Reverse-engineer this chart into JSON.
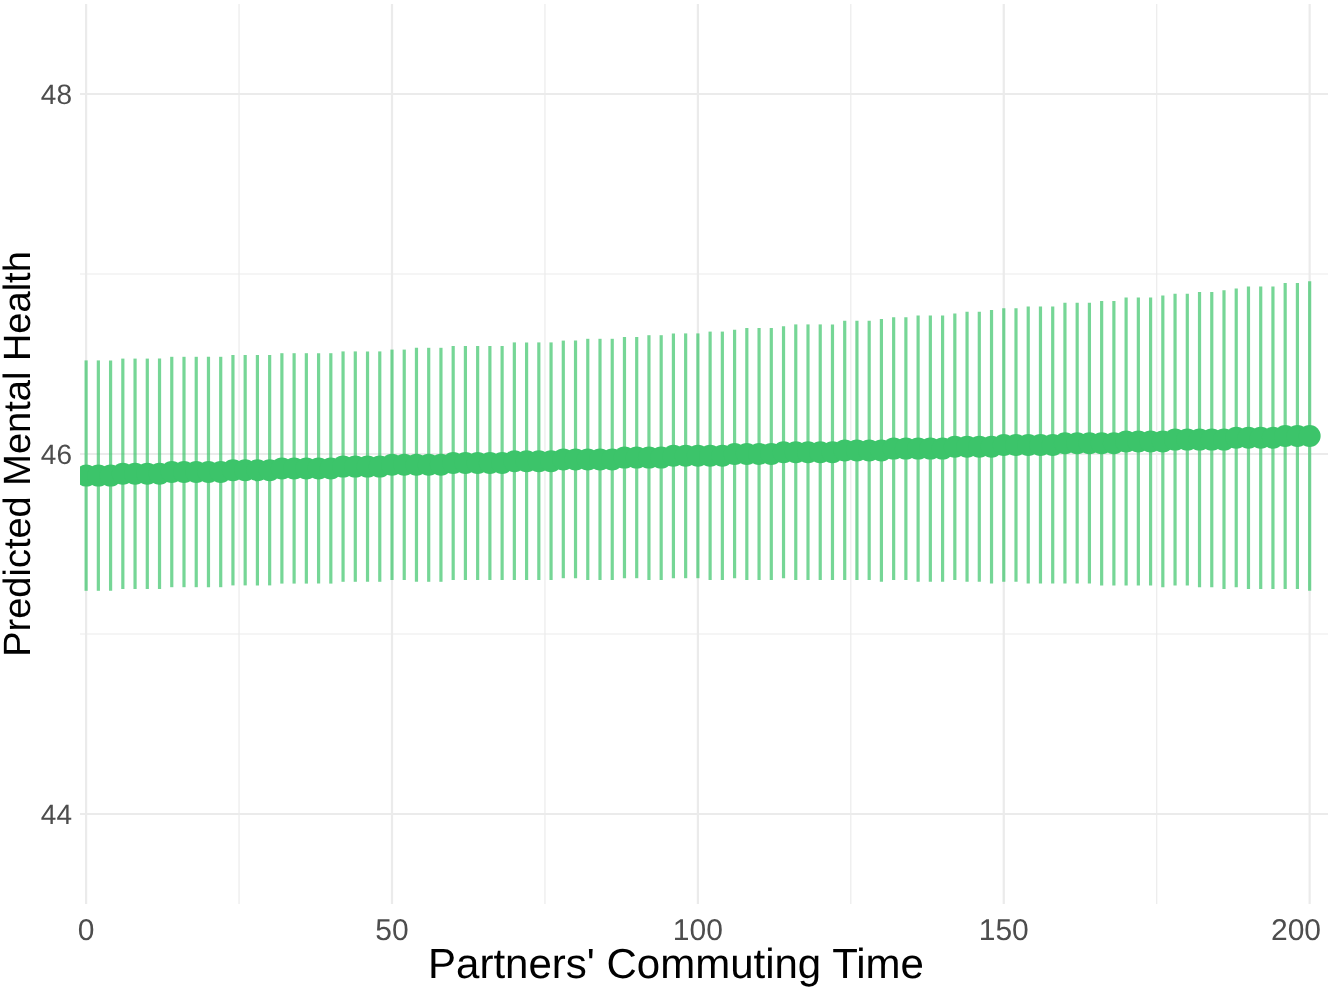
{
  "chart_data": {
    "type": "scatter",
    "xlabel": "Partners' Commuting Time",
    "ylabel": "Predicted Mental Health",
    "xlim": [
      -1,
      203
    ],
    "ylim": [
      43.5,
      48.5
    ],
    "xticks": [
      0,
      {
        "value": 25,
        "label": null
      },
      50,
      {
        "value": 75,
        "label": null
      },
      100,
      {
        "value": 125,
        "label": null
      },
      150,
      {
        "value": 175,
        "label": null
      },
      200
    ],
    "yticks": [
      44,
      {
        "value": 45,
        "label": null
      },
      46,
      {
        "value": 47,
        "label": null
      },
      48
    ],
    "grid": true,
    "marker": "circle",
    "x": [
      0,
      2,
      4,
      6,
      8,
      10,
      12,
      14,
      16,
      18,
      20,
      22,
      24,
      26,
      28,
      30,
      32,
      34,
      36,
      38,
      40,
      42,
      44,
      46,
      48,
      50,
      52,
      54,
      56,
      58,
      60,
      62,
      64,
      66,
      68,
      70,
      72,
      74,
      76,
      78,
      80,
      82,
      84,
      86,
      88,
      90,
      92,
      94,
      96,
      98,
      100,
      102,
      104,
      106,
      108,
      110,
      112,
      114,
      116,
      118,
      120,
      122,
      124,
      126,
      128,
      130,
      132,
      134,
      136,
      138,
      140,
      142,
      144,
      146,
      148,
      150,
      152,
      154,
      156,
      158,
      160,
      162,
      164,
      166,
      168,
      170,
      172,
      174,
      176,
      178,
      180,
      182,
      184,
      186,
      188,
      190,
      192,
      194,
      196,
      198,
      200
    ],
    "series": [
      {
        "color": "#3cc46a",
        "values": [
          45.88,
          45.88,
          45.88,
          45.89,
          45.89,
          45.89,
          45.89,
          45.9,
          45.9,
          45.9,
          45.9,
          45.9,
          45.91,
          45.91,
          45.91,
          45.91,
          45.92,
          45.92,
          45.92,
          45.92,
          45.92,
          45.93,
          45.93,
          45.93,
          45.93,
          45.94,
          45.94,
          45.94,
          45.94,
          45.94,
          45.95,
          45.95,
          45.95,
          45.95,
          45.95,
          45.96,
          45.96,
          45.96,
          45.96,
          45.97,
          45.97,
          45.97,
          45.97,
          45.97,
          45.98,
          45.98,
          45.98,
          45.98,
          45.99,
          45.99,
          45.99,
          45.99,
          45.99,
          46.0,
          46.0,
          46.0,
          46.0,
          46.01,
          46.01,
          46.01,
          46.01,
          46.01,
          46.02,
          46.02,
          46.02,
          46.02,
          46.03,
          46.03,
          46.03,
          46.03,
          46.03,
          46.04,
          46.04,
          46.04,
          46.04,
          46.05,
          46.05,
          46.05,
          46.05,
          46.05,
          46.06,
          46.06,
          46.06,
          46.06,
          46.06,
          46.07,
          46.07,
          46.07,
          46.07,
          46.08,
          46.08,
          46.08,
          46.08,
          46.08,
          46.09,
          46.09,
          46.09,
          46.09,
          46.1,
          46.1,
          46.1
        ],
        "errors": [
          0.64,
          0.64,
          0.64,
          0.64,
          0.64,
          0.64,
          0.64,
          0.64,
          0.64,
          0.64,
          0.64,
          0.64,
          0.64,
          0.64,
          0.64,
          0.64,
          0.64,
          0.64,
          0.64,
          0.64,
          0.64,
          0.64,
          0.64,
          0.64,
          0.64,
          0.64,
          0.64,
          0.65,
          0.65,
          0.65,
          0.65,
          0.65,
          0.65,
          0.65,
          0.65,
          0.66,
          0.66,
          0.66,
          0.66,
          0.66,
          0.66,
          0.67,
          0.67,
          0.67,
          0.67,
          0.67,
          0.68,
          0.68,
          0.68,
          0.68,
          0.68,
          0.69,
          0.69,
          0.69,
          0.7,
          0.7,
          0.7,
          0.7,
          0.71,
          0.71,
          0.71,
          0.71,
          0.72,
          0.72,
          0.72,
          0.73,
          0.73,
          0.73,
          0.74,
          0.74,
          0.74,
          0.74,
          0.75,
          0.75,
          0.76,
          0.76,
          0.76,
          0.77,
          0.77,
          0.77,
          0.78,
          0.78,
          0.78,
          0.79,
          0.79,
          0.8,
          0.8,
          0.8,
          0.81,
          0.81,
          0.81,
          0.82,
          0.82,
          0.83,
          0.83,
          0.84,
          0.84,
          0.84,
          0.85,
          0.85,
          0.86
        ]
      }
    ]
  }
}
